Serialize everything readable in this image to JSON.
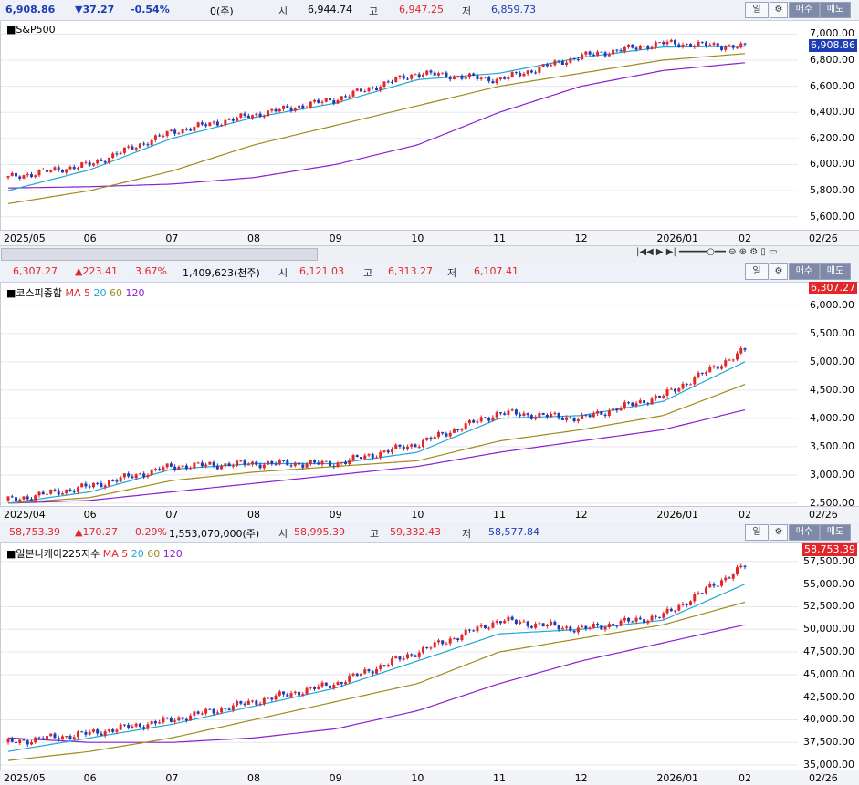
{
  "panels": [
    {
      "id": "sp500",
      "header": {
        "last": "6,908.86",
        "change": "▼37.27",
        "pct": "-0.54%",
        "volume": "0(주)",
        "open_label": "시",
        "open": "6,944.74",
        "high_label": "고",
        "high": "6,947.25",
        "low_label": "저",
        "low": "6,859.73",
        "dir": "down"
      },
      "title": "S&P500",
      "ma_label": "",
      "ma_periods": [],
      "y_ticks": [
        "7,000.00",
        "6,800.00",
        "6,600.00",
        "6,400.00",
        "6,200.00",
        "6,000.00",
        "5,800.00",
        "5,600.00"
      ],
      "x_ticks": [
        "2025/05",
        "06",
        "07",
        "08",
        "09",
        "10",
        "11",
        "12",
        "2026/01",
        "02",
        "02/26"
      ],
      "last_label": "6,908.86",
      "controls": [
        "일",
        "매수",
        "매도"
      ]
    },
    {
      "id": "kospi",
      "header": {
        "last": "6,307.27",
        "change": "▲223.41",
        "pct": "3.67%",
        "volume": "1,409,623(천주)",
        "open_label": "시",
        "open": "6,121.03",
        "high_label": "고",
        "high": "6,313.27",
        "low_label": "저",
        "low": "6,107.41",
        "dir": "up"
      },
      "title": "코스피종합",
      "ma_label": "MA",
      "ma_periods": [
        "5",
        "20",
        "60",
        "120"
      ],
      "y_ticks": [
        "6,000.00",
        "5,500.00",
        "5,000.00",
        "4,500.00",
        "4,000.00",
        "3,500.00",
        "3,000.00",
        "2,500.00"
      ],
      "x_ticks": [
        "2025/04",
        "06",
        "07",
        "08",
        "09",
        "10",
        "11",
        "12",
        "2026/01",
        "02",
        "02/26"
      ],
      "last_label": "6,307.27",
      "controls": [
        "일",
        "매수",
        "매도"
      ]
    },
    {
      "id": "nikkei",
      "header": {
        "last": "58,753.39",
        "change": "▲170.27",
        "pct": "0.29%",
        "volume": "1,553,070,000(주)",
        "open_label": "시",
        "open": "58,995.39",
        "high_label": "고",
        "high": "59,332.43",
        "low_label": "저",
        "low": "58,577.84",
        "dir": "up"
      },
      "title": "일본니케이225지수",
      "ma_label": "MA",
      "ma_periods": [
        "5",
        "20",
        "60",
        "120"
      ],
      "y_ticks": [
        "57,500.00",
        "55,000.00",
        "52,500.00",
        "50,000.00",
        "47,500.00",
        "45,000.00",
        "42,500.00",
        "40,000.00",
        "37,500.00",
        "35,000.00"
      ],
      "x_ticks": [
        "2025/05",
        "06",
        "07",
        "08",
        "09",
        "10",
        "11",
        "12",
        "2026/01",
        "02",
        "02/26"
      ],
      "last_label": "58,753.39",
      "controls": [
        "일",
        "매수",
        "매도"
      ]
    }
  ],
  "colors": {
    "up": "#e3262a",
    "down": "#1e3db5",
    "ma5": "#e3262a",
    "ma20": "#1ea7d8",
    "ma60": "#a08a1c",
    "ma120": "#8a1fd0"
  },
  "chart_data": [
    {
      "type": "candlestick",
      "title": "S&P500",
      "x": [
        "2025/05",
        "06",
        "07",
        "08",
        "09",
        "10",
        "11",
        "12",
        "2026/01",
        "02"
      ],
      "close": [
        5900,
        6000,
        6250,
        6380,
        6500,
        6700,
        6650,
        6830,
        6930,
        6900
      ],
      "ma20": [
        5800,
        5960,
        6200,
        6360,
        6470,
        6650,
        6700,
        6820,
        6900,
        6905
      ],
      "ma60": [
        5700,
        5800,
        5950,
        6150,
        6300,
        6450,
        6600,
        6700,
        6800,
        6850
      ],
      "ma120": [
        5820,
        5830,
        5850,
        5900,
        6000,
        6150,
        6400,
        6600,
        6720,
        6780
      ],
      "ylim": [
        5500,
        7100
      ]
    },
    {
      "type": "candlestick",
      "title": "코스피종합",
      "x": [
        "2025/04",
        "06",
        "07",
        "08",
        "09",
        "10",
        "11",
        "12",
        "2026/01",
        "02"
      ],
      "close": [
        2550,
        2800,
        3150,
        3200,
        3200,
        3550,
        4100,
        4000,
        4400,
        5200
      ],
      "ma20": [
        2500,
        2700,
        3100,
        3200,
        3200,
        3400,
        4000,
        4050,
        4300,
        5000
      ],
      "ma60": [
        2500,
        2600,
        2900,
        3050,
        3150,
        3250,
        3600,
        3800,
        4050,
        4600
      ],
      "ma120": [
        2500,
        2550,
        2700,
        2850,
        3000,
        3150,
        3400,
        3600,
        3800,
        4150
      ],
      "ylim": [
        2450,
        6400
      ]
    },
    {
      "type": "candlestick",
      "title": "일본니케이225지수",
      "x": [
        "2025/05",
        "06",
        "07",
        "08",
        "09",
        "10",
        "11",
        "12",
        "2026/01",
        "02"
      ],
      "close": [
        37500,
        38500,
        40000,
        42000,
        44000,
        47500,
        51000,
        50000,
        51500,
        57000
      ],
      "ma20": [
        36500,
        38000,
        39500,
        41500,
        43500,
        46500,
        49500,
        50000,
        51000,
        55000
      ],
      "ma60": [
        35500,
        36500,
        38000,
        40000,
        42000,
        44000,
        47500,
        49000,
        50500,
        53000
      ],
      "ma120": [
        38000,
        37500,
        37500,
        38000,
        39000,
        41000,
        44000,
        46500,
        48500,
        50500
      ],
      "ylim": [
        34500,
        59500
      ]
    }
  ]
}
